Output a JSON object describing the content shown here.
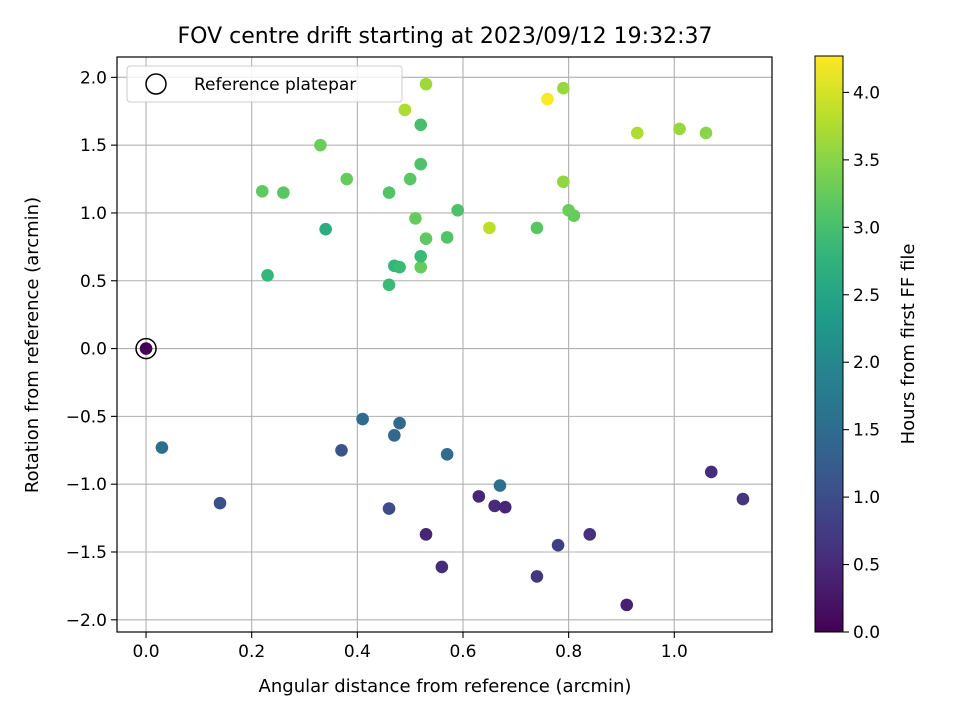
{
  "chart_data": {
    "type": "scatter",
    "title": "FOV centre drift starting at 2023/09/12 19:32:37",
    "xlabel": "Angular distance from reference (arcmin)",
    "ylabel": "Rotation from reference (arcmin)",
    "colorbar_label": "Hours from first FF file",
    "colormap": "viridis",
    "xlim": [
      -0.055,
      1.185
    ],
    "ylim": [
      -2.09,
      2.15
    ],
    "clim": [
      0.0,
      4.27
    ],
    "grid": true,
    "legend_position": "top-left",
    "legend": [
      {
        "label": "Reference platepar",
        "marker": "hollow-circle"
      }
    ],
    "x_ticks": [
      {
        "v": 0.0,
        "label": "0.0"
      },
      {
        "v": 0.2,
        "label": "0.2"
      },
      {
        "v": 0.4,
        "label": "0.4"
      },
      {
        "v": 0.6,
        "label": "0.6"
      },
      {
        "v": 0.8,
        "label": "0.8"
      },
      {
        "v": 1.0,
        "label": "1.0"
      }
    ],
    "y_ticks": [
      {
        "v": 2.0,
        "label": "2.0"
      },
      {
        "v": 1.5,
        "label": "1.5"
      },
      {
        "v": 1.0,
        "label": "1.0"
      },
      {
        "v": 0.5,
        "label": "0.5"
      },
      {
        "v": 0.0,
        "label": "0.0"
      },
      {
        "v": -0.5,
        "label": "−0.5"
      },
      {
        "v": -1.0,
        "label": "−1.0"
      },
      {
        "v": -1.5,
        "label": "−1.5"
      },
      {
        "v": -2.0,
        "label": "−2.0"
      }
    ],
    "colorbar_ticks": [
      {
        "v": 0.0,
        "label": "0.0"
      },
      {
        "v": 0.5,
        "label": "0.5"
      },
      {
        "v": 1.0,
        "label": "1.0"
      },
      {
        "v": 1.5,
        "label": "1.5"
      },
      {
        "v": 2.0,
        "label": "2.0"
      },
      {
        "v": 2.5,
        "label": "2.5"
      },
      {
        "v": 3.0,
        "label": "3.0"
      },
      {
        "v": 3.5,
        "label": "3.5"
      },
      {
        "v": 4.0,
        "label": "4.0"
      }
    ],
    "reference": {
      "x": 0.0,
      "y": 0.0,
      "c": 0.0
    },
    "points": [
      {
        "x": 0.0,
        "y": 0.0,
        "c": 0.02
      },
      {
        "x": 0.03,
        "y": -0.73,
        "c": 1.55
      },
      {
        "x": 0.14,
        "y": -1.14,
        "c": 1.05
      },
      {
        "x": 0.37,
        "y": -0.75,
        "c": 1.1
      },
      {
        "x": 0.41,
        "y": -0.52,
        "c": 1.5
      },
      {
        "x": 0.46,
        "y": -1.18,
        "c": 1.0
      },
      {
        "x": 0.47,
        "y": -0.64,
        "c": 1.4
      },
      {
        "x": 0.48,
        "y": -0.55,
        "c": 1.45
      },
      {
        "x": 0.53,
        "y": -1.37,
        "c": 0.45
      },
      {
        "x": 0.56,
        "y": -1.61,
        "c": 0.55
      },
      {
        "x": 0.57,
        "y": -0.78,
        "c": 1.5
      },
      {
        "x": 0.63,
        "y": -1.09,
        "c": 0.45
      },
      {
        "x": 0.66,
        "y": -1.16,
        "c": 0.5
      },
      {
        "x": 0.67,
        "y": -1.01,
        "c": 1.55
      },
      {
        "x": 0.68,
        "y": -1.17,
        "c": 0.45
      },
      {
        "x": 0.74,
        "y": -1.68,
        "c": 0.7
      },
      {
        "x": 0.78,
        "y": -1.45,
        "c": 0.8
      },
      {
        "x": 0.84,
        "y": -1.37,
        "c": 0.6
      },
      {
        "x": 0.91,
        "y": -1.89,
        "c": 0.4
      },
      {
        "x": 1.07,
        "y": -0.91,
        "c": 0.55
      },
      {
        "x": 1.13,
        "y": -1.11,
        "c": 0.65
      },
      {
        "x": 0.23,
        "y": 0.54,
        "c": 2.85
      },
      {
        "x": 0.22,
        "y": 1.16,
        "c": 3.2
      },
      {
        "x": 0.26,
        "y": 1.15,
        "c": 3.15
      },
      {
        "x": 0.33,
        "y": 1.5,
        "c": 3.3
      },
      {
        "x": 0.34,
        "y": 0.88,
        "c": 2.65
      },
      {
        "x": 0.38,
        "y": 1.25,
        "c": 3.25
      },
      {
        "x": 0.46,
        "y": 0.47,
        "c": 2.9
      },
      {
        "x": 0.46,
        "y": 1.15,
        "c": 3.1
      },
      {
        "x": 0.47,
        "y": 0.61,
        "c": 2.8
      },
      {
        "x": 0.48,
        "y": 0.6,
        "c": 2.9
      },
      {
        "x": 0.49,
        "y": 1.76,
        "c": 3.75
      },
      {
        "x": 0.5,
        "y": 1.25,
        "c": 3.15
      },
      {
        "x": 0.51,
        "y": 0.96,
        "c": 3.25
      },
      {
        "x": 0.52,
        "y": 1.36,
        "c": 3.05
      },
      {
        "x": 0.52,
        "y": 1.65,
        "c": 3.0
      },
      {
        "x": 0.52,
        "y": 0.6,
        "c": 3.25
      },
      {
        "x": 0.52,
        "y": 0.68,
        "c": 2.9
      },
      {
        "x": 0.53,
        "y": 1.95,
        "c": 3.65
      },
      {
        "x": 0.53,
        "y": 0.81,
        "c": 3.2
      },
      {
        "x": 0.57,
        "y": 0.82,
        "c": 3.1
      },
      {
        "x": 0.59,
        "y": 1.02,
        "c": 3.05
      },
      {
        "x": 0.65,
        "y": 0.89,
        "c": 3.85
      },
      {
        "x": 0.74,
        "y": 0.89,
        "c": 3.15
      },
      {
        "x": 0.76,
        "y": 1.84,
        "c": 4.25
      },
      {
        "x": 0.79,
        "y": 1.92,
        "c": 3.6
      },
      {
        "x": 0.79,
        "y": 1.23,
        "c": 3.55
      },
      {
        "x": 0.8,
        "y": 1.02,
        "c": 3.3
      },
      {
        "x": 0.81,
        "y": 0.98,
        "c": 3.25
      },
      {
        "x": 0.93,
        "y": 1.59,
        "c": 3.75
      },
      {
        "x": 1.01,
        "y": 1.62,
        "c": 3.6
      },
      {
        "x": 1.06,
        "y": 1.59,
        "c": 3.5
      }
    ]
  }
}
